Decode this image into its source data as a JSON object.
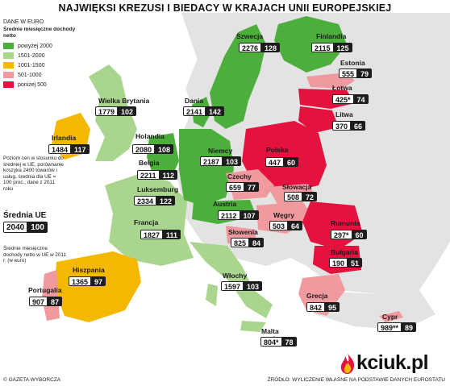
{
  "title": "NAJWIĘKSI KREZUSI I BIEDACY W KRAJACH UNII EUROPEJSKIEJ",
  "legend": {
    "unit": "DANE W EURO",
    "heading": "Średnie miesięczne dochody netto",
    "items": [
      {
        "label": "powyżej 2000",
        "color": "#4caf3c"
      },
      {
        "label": "1501-2000",
        "color": "#a9d58e"
      },
      {
        "label": "1001-1500",
        "color": "#f5b800"
      },
      {
        "label": "501-1000",
        "color": "#f09aa0"
      },
      {
        "label": "poniżej 500",
        "color": "#e3123e"
      }
    ]
  },
  "note": "Poziom cen w stosunku do średniej w UE, porównanie koszyka 2400 towarów i usług, średnia dla UE = 100 proc., dane z 2011 roku",
  "average": {
    "label": "Średnia UE",
    "income": "2040",
    "price": "100"
  },
  "average_note": "Średnie miesięczne dochody netto w UE w 2011 r. (w euro)",
  "countries": [
    {
      "name": "Szwecja",
      "income": "2276",
      "price": "128"
    },
    {
      "name": "Finlandia",
      "income": "2115",
      "price": "125"
    },
    {
      "name": "Estonia",
      "income": "555",
      "price": "79"
    },
    {
      "name": "Łotwa",
      "income": "425*",
      "price": "74"
    },
    {
      "name": "Litwa",
      "income": "370",
      "price": "66"
    },
    {
      "name": "Wielka Brytania",
      "income": "1779",
      "price": "102"
    },
    {
      "name": "Dania",
      "income": "2141",
      "price": "142"
    },
    {
      "name": "Irlandia",
      "income": "1484",
      "price": "117"
    },
    {
      "name": "Holandia",
      "income": "2080",
      "price": "108"
    },
    {
      "name": "Niemcy",
      "income": "2187",
      "price": "103"
    },
    {
      "name": "Polska",
      "income": "447",
      "price": "60"
    },
    {
      "name": "Belgia",
      "income": "2211",
      "price": "112"
    },
    {
      "name": "Luksemburg",
      "income": "2334",
      "price": "122"
    },
    {
      "name": "Czechy",
      "income": "659",
      "price": "77"
    },
    {
      "name": "Słowacja",
      "income": "508",
      "price": "72"
    },
    {
      "name": "Austria",
      "income": "2112",
      "price": "107"
    },
    {
      "name": "Węgry",
      "income": "503",
      "price": "64"
    },
    {
      "name": "Rumunia",
      "income": "297*",
      "price": "60"
    },
    {
      "name": "Francja",
      "income": "1827",
      "price": "111"
    },
    {
      "name": "Słowenia",
      "income": "825",
      "price": "84"
    },
    {
      "name": "Bułgaria",
      "income": "190",
      "price": "51"
    },
    {
      "name": "Hiszpania",
      "income": "1365",
      "price": "97"
    },
    {
      "name": "Włochy",
      "income": "1597",
      "price": "103"
    },
    {
      "name": "Portugalia",
      "income": "907",
      "price": "87"
    },
    {
      "name": "Grecja",
      "income": "842",
      "price": "95"
    },
    {
      "name": "Malta",
      "income": "804*",
      "price": "78"
    },
    {
      "name": "Cypr",
      "income": "989**",
      "price": "89"
    }
  ],
  "footer_left": "© GAZETA WYBORCZA",
  "footer_right": "ŹRÓDŁO: WYLICZENIE WŁASNE NA PODSTAWIE DANYCH EUROSTATU",
  "logo": "kciuk.pl"
}
